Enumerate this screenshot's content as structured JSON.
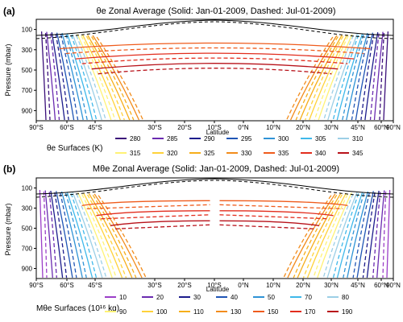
{
  "chart_data": [
    {
      "panel_label": "(a)",
      "title": "θe Zonal Average (Solid: Jan-01-2009, Dashed: Jul-01-2009)",
      "type": "line",
      "xlabel": "Latitude",
      "ylabel": "Pressure (mbar)",
      "x_ticks": [
        "90°S",
        "60°S",
        "45°S",
        "30°S",
        "20°S",
        "10°S",
        "0°N",
        "10°N",
        "20°N",
        "30°N",
        "45°N",
        "60°N",
        "90°N"
      ],
      "y_ticks": [
        100,
        300,
        500,
        700,
        900
      ],
      "legend_title": "θe Surfaces (K)",
      "series": [
        {
          "name": "280",
          "color": "#3b0f7a"
        },
        {
          "name": "285",
          "color": "#6a2bb0"
        },
        {
          "name": "290",
          "color": "#1c1c8c"
        },
        {
          "name": "295",
          "color": "#1f55b5"
        },
        {
          "name": "300",
          "color": "#2f93d6"
        },
        {
          "name": "305",
          "color": "#3fb8ea"
        },
        {
          "name": "310",
          "color": "#9ccfe6"
        },
        {
          "name": "315",
          "color": "#fff275"
        },
        {
          "name": "320",
          "color": "#ffd23a"
        },
        {
          "name": "325",
          "color": "#f6ae1a"
        },
        {
          "name": "330",
          "color": "#f28c1c"
        },
        {
          "name": "335",
          "color": "#ef5b1c"
        },
        {
          "name": "340",
          "color": "#e22d1d"
        },
        {
          "name": "345",
          "color": "#b8121a"
        }
      ]
    },
    {
      "panel_label": "(b)",
      "title": "Mθe Zonal Average (Solid: Jan-01-2009, Dashed: Jul-01-2009)",
      "type": "line",
      "xlabel": "Latitude",
      "ylabel": "Pressure (mbar)",
      "x_ticks": [
        "90°S",
        "60°S",
        "45°S",
        "30°S",
        "20°S",
        "10°S",
        "0°N",
        "10°N",
        "20°N",
        "30°N",
        "45°N",
        "60°N",
        "90°N"
      ],
      "y_ticks": [
        100,
        300,
        500,
        700,
        900
      ],
      "legend_title": "Mθe Surfaces (10¹⁶ kg)",
      "series": [
        {
          "name": "10",
          "color": "#9b3fc8"
        },
        {
          "name": "20",
          "color": "#6a2bb0"
        },
        {
          "name": "30",
          "color": "#1c1c8c"
        },
        {
          "name": "40",
          "color": "#1f55b5"
        },
        {
          "name": "50",
          "color": "#2f93d6"
        },
        {
          "name": "70",
          "color": "#3fb8ea"
        },
        {
          "name": "80",
          "color": "#9ccfe6"
        },
        {
          "name": "90",
          "color": "#fff275"
        },
        {
          "name": "100",
          "color": "#ffd23a"
        },
        {
          "name": "110",
          "color": "#f6ae1a"
        },
        {
          "name": "130",
          "color": "#f28c1c"
        },
        {
          "name": "150",
          "color": "#ef5b1c"
        },
        {
          "name": "170",
          "color": "#e22d1d"
        },
        {
          "name": "190",
          "color": "#b8121a"
        }
      ]
    }
  ]
}
